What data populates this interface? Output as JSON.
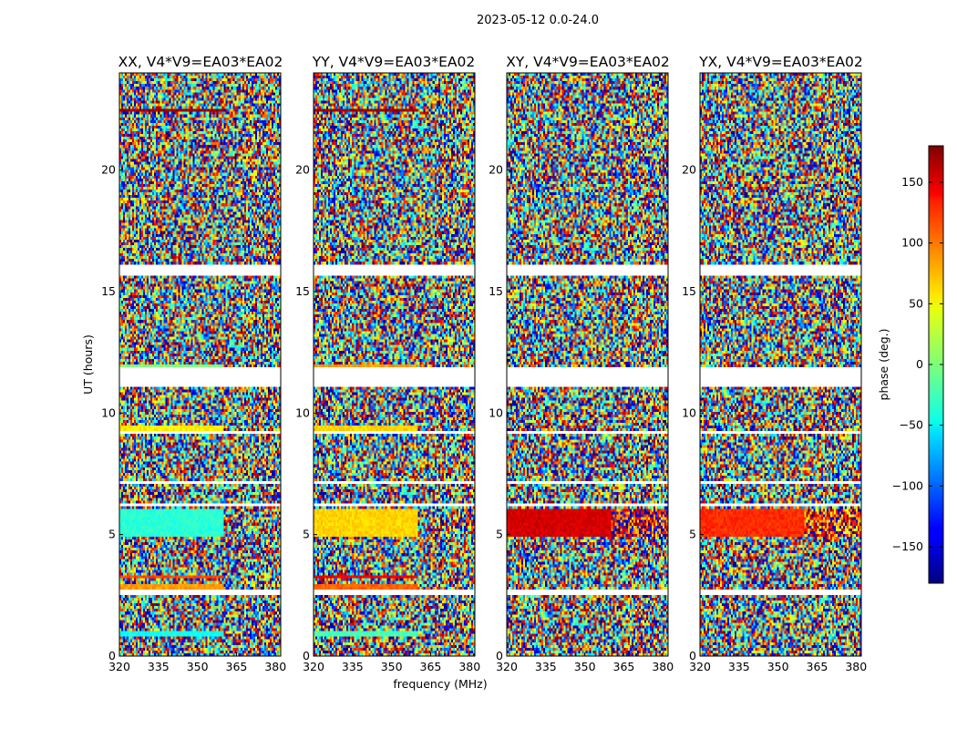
{
  "figure": {
    "suptitle": "2023-05-12 0.0-24.0",
    "xlabel": "frequency (MHz)",
    "ylabel": "UT (hours)"
  },
  "colorbar": {
    "label": "phase (deg.)",
    "colormap": "jet",
    "range": [
      -180,
      180
    ],
    "ticks": [
      150,
      100,
      50,
      0,
      -50,
      -100,
      -150
    ],
    "tick_labels": [
      "150",
      "100",
      "50",
      "0",
      "−50",
      "−100",
      "−150"
    ]
  },
  "chart_data": {
    "type": "heatmap",
    "title": "2023-05-12 0.0-24.0",
    "xlabel": "frequency (MHz)",
    "ylabel": "UT (hours)",
    "xlim": [
      320,
      382
    ],
    "ylim": [
      0,
      24
    ],
    "x_ticks": [
      320,
      335,
      350,
      365,
      380
    ],
    "y_ticks": [
      0,
      5,
      10,
      15,
      20
    ],
    "value_label": "phase (deg.)",
    "value_range": [
      -180,
      180
    ],
    "flagged_time_ranges_hours": [
      [
        2.55,
        2.7
      ],
      [
        11.05,
        11.85
      ],
      [
        15.7,
        16.1
      ],
      [
        6.2,
        6.3
      ],
      [
        7.1,
        7.25
      ],
      [
        9.1,
        9.25
      ]
    ],
    "coherent_frequency_range_mhz": [
      320,
      360
    ],
    "panels": [
      {
        "title": "XX, V4*V9=EA03*EA02",
        "description": "coherent phase rows",
        "coherent_rows": [
          {
            "t0": 4.9,
            "t1": 6.1,
            "phase": -30
          },
          {
            "t0": 0.8,
            "t1": 1.05,
            "phase": -40
          },
          {
            "t0": 3.2,
            "t1": 3.35,
            "phase": 110
          },
          {
            "t0": 2.8,
            "t1": 2.95,
            "phase": 80
          },
          {
            "t0": 9.3,
            "t1": 9.45,
            "phase": 50
          },
          {
            "t0": 11.85,
            "t1": 12.0,
            "phase": 0
          },
          {
            "t0": 22.4,
            "t1": 22.5,
            "phase": 170
          }
        ]
      },
      {
        "title": "YY, V4*V9=EA03*EA02",
        "description": "coherent phase rows",
        "coherent_rows": [
          {
            "t0": 4.9,
            "t1": 6.1,
            "phase": 60
          },
          {
            "t0": 0.8,
            "t1": 1.05,
            "phase": -20
          },
          {
            "t0": 3.2,
            "t1": 3.35,
            "phase": 140
          },
          {
            "t0": 2.8,
            "t1": 2.95,
            "phase": 100
          },
          {
            "t0": 9.3,
            "t1": 9.45,
            "phase": 60
          },
          {
            "t0": 11.85,
            "t1": 12.0,
            "phase": 80
          },
          {
            "t0": 22.4,
            "t1": 22.5,
            "phase": 170
          }
        ]
      },
      {
        "title": "XY, V4*V9=EA03*EA02",
        "description": "mostly noise, warm near 5 UT",
        "coherent_rows": [
          {
            "t0": 4.9,
            "t1": 6.1,
            "phase": 150
          }
        ]
      },
      {
        "title": "YX, V4*V9=EA03*EA02",
        "description": "mostly noise, warm near 5 UT",
        "coherent_rows": [
          {
            "t0": 4.9,
            "t1": 6.1,
            "phase": 120
          }
        ]
      }
    ]
  }
}
